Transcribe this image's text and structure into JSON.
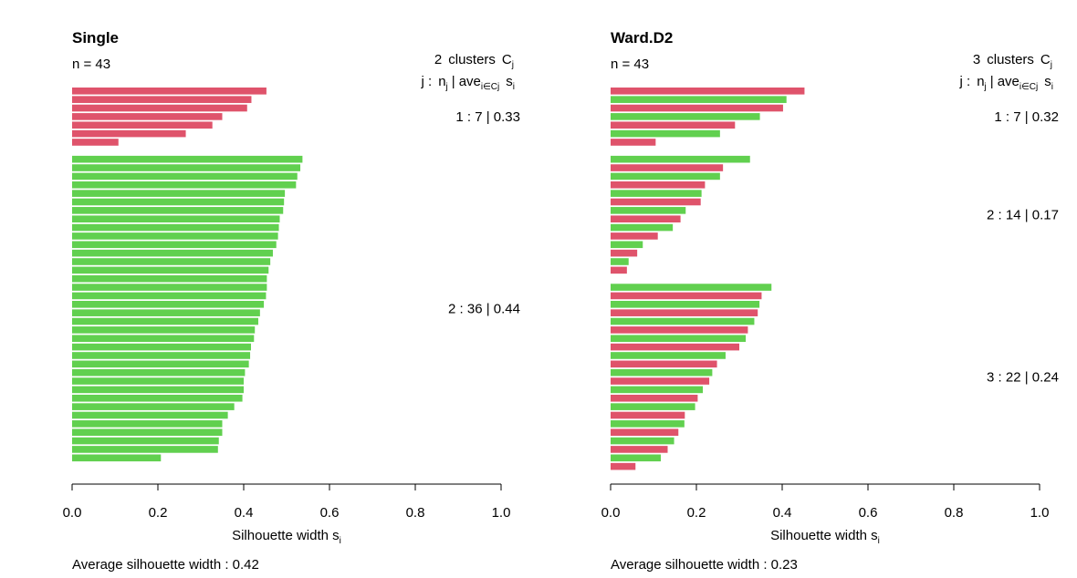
{
  "chart_data": [
    {
      "type": "bar",
      "orientation": "horizontal",
      "title": "Single",
      "n_label": "n = 43",
      "header": {
        "count": "2",
        "clusters_text": "clusters",
        "C": "C",
        "C_sub": "j",
        "row2_j": "j :",
        "row2_n": "n",
        "row2_n_sub": "j",
        "row2_bar": "|",
        "row2_ave": "ave",
        "row2_ave_sub": "i∈Cj",
        "row2_s": "s",
        "row2_s_sub": "i"
      },
      "xlabel": "Silhouette width s",
      "xlabel_sub": "i",
      "xlim": [
        0,
        1
      ],
      "xticks": [
        "0.0",
        "0.2",
        "0.4",
        "0.6",
        "0.8",
        "1.0"
      ],
      "grid": false,
      "footer": "Average silhouette width :  0.42",
      "clusters": [
        {
          "label": "1 :   7  |  0.33",
          "start": 1,
          "end": 7
        },
        {
          "label": "2 :   36  |  0.44",
          "start": 9,
          "end": 44
        }
      ],
      "bars": [
        {
          "value": 0.453,
          "color": "#DF536B"
        },
        {
          "value": 0.418,
          "color": "#DF536B"
        },
        {
          "value": 0.408,
          "color": "#DF536B"
        },
        {
          "value": 0.35,
          "color": "#DF536B"
        },
        {
          "value": 0.327,
          "color": "#DF536B"
        },
        {
          "value": 0.265,
          "color": "#DF536B"
        },
        {
          "value": 0.108,
          "color": "#DF536B"
        },
        null,
        {
          "value": 0.537,
          "color": "#61D04F"
        },
        {
          "value": 0.532,
          "color": "#61D04F"
        },
        {
          "value": 0.525,
          "color": "#61D04F"
        },
        {
          "value": 0.522,
          "color": "#61D04F"
        },
        {
          "value": 0.496,
          "color": "#61D04F"
        },
        {
          "value": 0.494,
          "color": "#61D04F"
        },
        {
          "value": 0.492,
          "color": "#61D04F"
        },
        {
          "value": 0.484,
          "color": "#61D04F"
        },
        {
          "value": 0.482,
          "color": "#61D04F"
        },
        {
          "value": 0.48,
          "color": "#61D04F"
        },
        {
          "value": 0.476,
          "color": "#61D04F"
        },
        {
          "value": 0.468,
          "color": "#61D04F"
        },
        {
          "value": 0.462,
          "color": "#61D04F"
        },
        {
          "value": 0.458,
          "color": "#61D04F"
        },
        {
          "value": 0.454,
          "color": "#61D04F"
        },
        {
          "value": 0.454,
          "color": "#61D04F"
        },
        {
          "value": 0.452,
          "color": "#61D04F"
        },
        {
          "value": 0.447,
          "color": "#61D04F"
        },
        {
          "value": 0.438,
          "color": "#61D04F"
        },
        {
          "value": 0.434,
          "color": "#61D04F"
        },
        {
          "value": 0.426,
          "color": "#61D04F"
        },
        {
          "value": 0.424,
          "color": "#61D04F"
        },
        {
          "value": 0.417,
          "color": "#61D04F"
        },
        {
          "value": 0.415,
          "color": "#61D04F"
        },
        {
          "value": 0.412,
          "color": "#61D04F"
        },
        {
          "value": 0.403,
          "color": "#61D04F"
        },
        {
          "value": 0.4,
          "color": "#61D04F"
        },
        {
          "value": 0.4,
          "color": "#61D04F"
        },
        {
          "value": 0.397,
          "color": "#61D04F"
        },
        {
          "value": 0.378,
          "color": "#61D04F"
        },
        {
          "value": 0.363,
          "color": "#61D04F"
        },
        {
          "value": 0.35,
          "color": "#61D04F"
        },
        {
          "value": 0.35,
          "color": "#61D04F"
        },
        {
          "value": 0.342,
          "color": "#61D04F"
        },
        {
          "value": 0.34,
          "color": "#61D04F"
        },
        {
          "value": 0.207,
          "color": "#61D04F"
        }
      ]
    },
    {
      "type": "bar",
      "orientation": "horizontal",
      "title": "Ward.D2",
      "n_label": "n = 43",
      "header": {
        "count": "3",
        "clusters_text": "clusters",
        "C": "C",
        "C_sub": "j",
        "row2_j": "j :",
        "row2_n": "n",
        "row2_n_sub": "j",
        "row2_bar": "|",
        "row2_ave": "ave",
        "row2_ave_sub": "i∈Cj",
        "row2_s": "s",
        "row2_s_sub": "i"
      },
      "xlabel": "Silhouette width s",
      "xlabel_sub": "i",
      "xlim": [
        0,
        1
      ],
      "xticks": [
        "0.0",
        "0.2",
        "0.4",
        "0.6",
        "0.8",
        "1.0"
      ],
      "grid": false,
      "footer": "Average silhouette width :  0.23",
      "clusters": [
        {
          "label": "1 :   7  |  0.32",
          "start": 1,
          "end": 7
        },
        {
          "label": "2 :   14  |  0.17",
          "start": 9,
          "end": 22
        },
        {
          "label": "3 :   22  |  0.24",
          "start": 24,
          "end": 45
        }
      ],
      "bars": [
        {
          "value": 0.452,
          "color": "#DF536B"
        },
        {
          "value": 0.41,
          "color": "#61D04F"
        },
        {
          "value": 0.402,
          "color": "#DF536B"
        },
        {
          "value": 0.348,
          "color": "#61D04F"
        },
        {
          "value": 0.29,
          "color": "#DF536B"
        },
        {
          "value": 0.255,
          "color": "#61D04F"
        },
        {
          "value": 0.105,
          "color": "#DF536B"
        },
        null,
        {
          "value": 0.325,
          "color": "#61D04F"
        },
        {
          "value": 0.262,
          "color": "#DF536B"
        },
        {
          "value": 0.255,
          "color": "#61D04F"
        },
        {
          "value": 0.22,
          "color": "#DF536B"
        },
        {
          "value": 0.212,
          "color": "#61D04F"
        },
        {
          "value": 0.21,
          "color": "#DF536B"
        },
        {
          "value": 0.175,
          "color": "#61D04F"
        },
        {
          "value": 0.163,
          "color": "#DF536B"
        },
        {
          "value": 0.145,
          "color": "#61D04F"
        },
        {
          "value": 0.11,
          "color": "#DF536B"
        },
        {
          "value": 0.075,
          "color": "#61D04F"
        },
        {
          "value": 0.062,
          "color": "#DF536B"
        },
        {
          "value": 0.042,
          "color": "#61D04F"
        },
        {
          "value": 0.038,
          "color": "#DF536B"
        },
        null,
        {
          "value": 0.375,
          "color": "#61D04F"
        },
        {
          "value": 0.352,
          "color": "#DF536B"
        },
        {
          "value": 0.347,
          "color": "#61D04F"
        },
        {
          "value": 0.343,
          "color": "#DF536B"
        },
        {
          "value": 0.335,
          "color": "#61D04F"
        },
        {
          "value": 0.32,
          "color": "#DF536B"
        },
        {
          "value": 0.315,
          "color": "#61D04F"
        },
        {
          "value": 0.3,
          "color": "#DF536B"
        },
        {
          "value": 0.268,
          "color": "#61D04F"
        },
        {
          "value": 0.248,
          "color": "#DF536B"
        },
        {
          "value": 0.237,
          "color": "#61D04F"
        },
        {
          "value": 0.23,
          "color": "#DF536B"
        },
        {
          "value": 0.215,
          "color": "#61D04F"
        },
        {
          "value": 0.203,
          "color": "#DF536B"
        },
        {
          "value": 0.197,
          "color": "#61D04F"
        },
        {
          "value": 0.173,
          "color": "#DF536B"
        },
        {
          "value": 0.172,
          "color": "#61D04F"
        },
        {
          "value": 0.158,
          "color": "#DF536B"
        },
        {
          "value": 0.148,
          "color": "#61D04F"
        },
        {
          "value": 0.133,
          "color": "#DF536B"
        },
        {
          "value": 0.117,
          "color": "#61D04F"
        },
        {
          "value": 0.058,
          "color": "#DF536B"
        }
      ]
    }
  ]
}
